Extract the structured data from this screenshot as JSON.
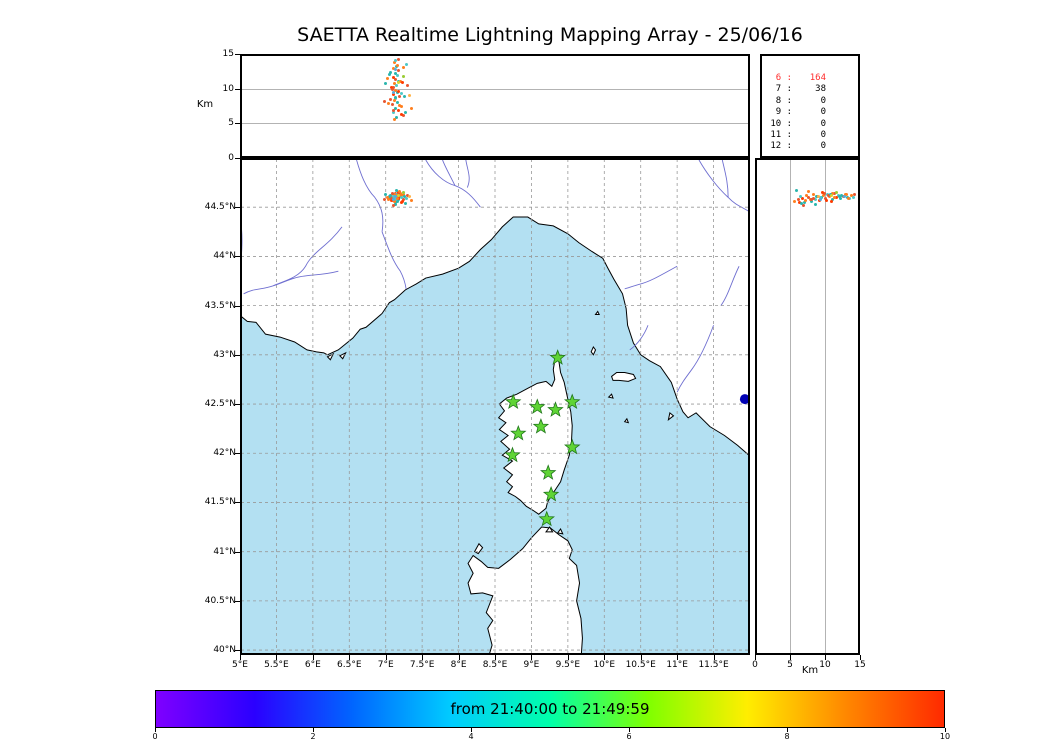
{
  "title": "SAETTA Realtime Lightning Mapping Array - 25/06/16",
  "ui": {
    "altitude_unit": "Km"
  },
  "colors": {
    "sea": "#b3e0f2",
    "land": "#ffffff",
    "coastline": "#000000",
    "river": "#6f6fd0",
    "map_grid": "#999999",
    "panel_grid": "#b3b3b3",
    "tick": "#000000",
    "station_fill": "#5fd435",
    "station_stroke": "#20761b",
    "lake": "#0000b4",
    "count_highlight": "#ff2d2d"
  },
  "chart_data": [
    {
      "type": "scatter",
      "name": "altitude_vs_longitude",
      "ylabel": "Km",
      "yticks": [
        0,
        5,
        10,
        15
      ],
      "ylim": [
        0,
        15
      ],
      "xlim_deg_e": [
        5,
        12
      ],
      "grid": "solid horizontal at 5 and 10 km",
      "points": "lightning_points projected as x=lon_deg_e, y=alt_km"
    },
    {
      "type": "table",
      "name": "altitude_source_counts",
      "columns": [
        "altitude_km",
        "count"
      ],
      "rows": [
        [
          6,
          164
        ],
        [
          7,
          38
        ],
        [
          8,
          0
        ],
        [
          9,
          0
        ],
        [
          10,
          0
        ],
        [
          11,
          0
        ],
        [
          12,
          0
        ]
      ],
      "highlight": {
        "row": 0,
        "color": "#ff2d2d"
      }
    },
    {
      "type": "scatter",
      "name": "map_plan_view",
      "xlim_deg_e": [
        5,
        12
      ],
      "ylim_deg_n": [
        39.95,
        45.0
      ],
      "grid": "dashed every 0.5 degree",
      "lat_ticks": [
        {
          "v": 44.5,
          "t": "44.5°N"
        },
        {
          "v": 44.0,
          "t": "44°N"
        },
        {
          "v": 43.5,
          "t": "43.5°N"
        },
        {
          "v": 43.0,
          "t": "43°N"
        },
        {
          "v": 42.5,
          "t": "42.5°N"
        },
        {
          "v": 42.0,
          "t": "42°N"
        },
        {
          "v": 41.5,
          "t": "41.5°N"
        },
        {
          "v": 41.0,
          "t": "41°N"
        },
        {
          "v": 40.5,
          "t": "40.5°N"
        },
        {
          "v": 40.0,
          "t": "40°N"
        }
      ],
      "lon_ticks": [
        {
          "v": 5.0,
          "t": "5°E"
        },
        {
          "v": 5.5,
          "t": "5.5°E"
        },
        {
          "v": 6.0,
          "t": "6°E"
        },
        {
          "v": 6.5,
          "t": "6.5°E"
        },
        {
          "v": 7.0,
          "t": "7°E"
        },
        {
          "v": 7.5,
          "t": "7.5°E"
        },
        {
          "v": 8.0,
          "t": "8°E"
        },
        {
          "v": 8.5,
          "t": "8.5°E"
        },
        {
          "v": 9.0,
          "t": "9°E"
        },
        {
          "v": 9.5,
          "t": "9.5°E"
        },
        {
          "v": 10.0,
          "t": "10°E"
        },
        {
          "v": 10.5,
          "t": "10.5°E"
        },
        {
          "v": 11.0,
          "t": "11°E"
        },
        {
          "v": 11.5,
          "t": "11.5°E"
        }
      ],
      "points": "lightning_points projected as x=lon_deg_e, y=lat_deg_n",
      "stations": "see stations (green star markers on Corsica)"
    },
    {
      "type": "scatter",
      "name": "altitude_vs_latitude",
      "xlabel": "Km",
      "xticks": [
        0,
        5,
        10,
        15
      ],
      "xlim": [
        0,
        15
      ],
      "ylim_deg_n": [
        39.95,
        45.0
      ],
      "grid": "solid vertical at 5 and 10 km",
      "points": "lightning_points projected as x=alt_km, y=lat_deg_n"
    },
    {
      "type": "colorbar",
      "name": "time_colorbar",
      "label": "from 21:40:00 to 21:49:59",
      "range": [
        0,
        10
      ],
      "ticks": [
        0,
        2,
        4,
        6,
        8,
        10
      ],
      "colors": [
        "#7f00ff",
        "#2b00ff",
        "#0066ff",
        "#00ccff",
        "#00ffaa",
        "#7fff00",
        "#ffee00",
        "#ff8800",
        "#ff2a00"
      ]
    }
  ],
  "lightning_points": {
    "fields": [
      "lon_deg_e",
      "lat_deg_n",
      "alt_km",
      "palette_index"
    ],
    "palette": [
      "#ff3b00",
      "#ff7f1e",
      "#e85530",
      "#ffb347",
      "#2ab5ad",
      "#4fc8c8",
      "#85d8d8",
      "#58aadd",
      "#99cc33",
      "#d8d832"
    ],
    "data": [
      [
        7.12,
        44.62,
        13.8,
        1
      ],
      [
        7.15,
        44.6,
        13.2,
        4
      ],
      [
        7.1,
        44.63,
        12.9,
        1
      ],
      [
        7.18,
        44.61,
        12.6,
        2
      ],
      [
        7.13,
        44.59,
        12.2,
        4
      ],
      [
        7.16,
        44.62,
        11.9,
        5
      ],
      [
        7.11,
        44.6,
        11.6,
        0
      ],
      [
        7.14,
        44.64,
        11.3,
        2
      ],
      [
        7.17,
        44.58,
        11.0,
        4
      ],
      [
        7.12,
        44.61,
        10.7,
        1
      ],
      [
        7.15,
        44.63,
        10.4,
        5
      ],
      [
        7.1,
        44.59,
        10.1,
        2
      ],
      [
        7.13,
        44.62,
        9.8,
        1
      ],
      [
        7.16,
        44.6,
        9.5,
        4
      ],
      [
        7.11,
        44.57,
        9.2,
        0
      ],
      [
        7.19,
        44.61,
        8.9,
        2
      ],
      [
        7.14,
        44.58,
        8.6,
        5
      ],
      [
        7.12,
        44.63,
        8.3,
        1
      ],
      [
        7.16,
        44.56,
        8.0,
        4
      ],
      [
        7.09,
        44.6,
        7.7,
        2
      ],
      [
        7.21,
        44.62,
        7.4,
        1
      ],
      [
        7.13,
        44.55,
        7.1,
        4
      ],
      [
        7.18,
        44.59,
        6.8,
        0
      ],
      [
        7.11,
        44.61,
        6.5,
        5
      ],
      [
        7.24,
        44.58,
        6.2,
        2
      ],
      [
        7.07,
        44.62,
        12.4,
        4
      ],
      [
        7.2,
        44.64,
        11.1,
        1
      ],
      [
        7.08,
        44.57,
        10.2,
        0
      ],
      [
        7.22,
        44.6,
        9.3,
        5
      ],
      [
        7.06,
        44.59,
        8.4,
        2
      ],
      [
        7.25,
        44.63,
        13.0,
        1
      ],
      [
        7.05,
        44.61,
        12.0,
        4
      ],
      [
        7.23,
        44.56,
        10.9,
        0
      ],
      [
        7.09,
        44.64,
        9.9,
        2
      ],
      [
        7.26,
        44.61,
        8.8,
        4
      ],
      [
        7.04,
        44.58,
        7.9,
        1
      ],
      [
        7.28,
        44.59,
        13.5,
        5
      ],
      [
        7.02,
        44.6,
        11.4,
        1
      ],
      [
        7.3,
        44.62,
        10.5,
        2
      ],
      [
        7.17,
        44.65,
        9.6,
        0
      ],
      [
        7.14,
        44.53,
        8.7,
        4
      ],
      [
        7.19,
        44.66,
        7.6,
        1
      ],
      [
        7.1,
        44.52,
        6.9,
        2
      ],
      [
        7.21,
        44.55,
        6.3,
        0
      ],
      [
        7.15,
        44.67,
        5.9,
        4
      ],
      [
        7.12,
        44.56,
        5.6,
        1
      ],
      [
        7.18,
        44.63,
        14.2,
        2
      ],
      [
        7.13,
        44.6,
        14.0,
        5
      ],
      [
        7.16,
        44.59,
        13.4,
        1
      ],
      [
        7.33,
        44.61,
        9.0,
        3
      ],
      [
        7.0,
        44.63,
        10.8,
        4
      ],
      [
        7.35,
        44.57,
        7.2,
        1
      ],
      [
        6.98,
        44.58,
        8.1,
        2
      ],
      [
        7.24,
        44.65,
        11.7,
        8
      ],
      [
        7.27,
        44.54,
        6.6,
        4
      ],
      [
        7.14,
        44.61,
        12.8,
        7
      ],
      [
        7.17,
        44.62,
        10.9,
        9
      ],
      [
        7.11,
        44.58,
        9.4,
        7
      ]
    ]
  },
  "stations": [
    [
      9.36,
      42.97
    ],
    [
      8.75,
      42.52
    ],
    [
      9.08,
      42.47
    ],
    [
      9.33,
      42.44
    ],
    [
      9.56,
      42.52
    ],
    [
      8.82,
      42.2
    ],
    [
      9.13,
      42.27
    ],
    [
      9.56,
      42.06
    ],
    [
      8.74,
      41.98
    ],
    [
      9.23,
      41.8
    ],
    [
      9.27,
      41.58
    ],
    [
      9.21,
      41.33
    ]
  ],
  "lake_marker": {
    "lon_deg_e": 11.93,
    "lat_deg_n": 42.55
  }
}
